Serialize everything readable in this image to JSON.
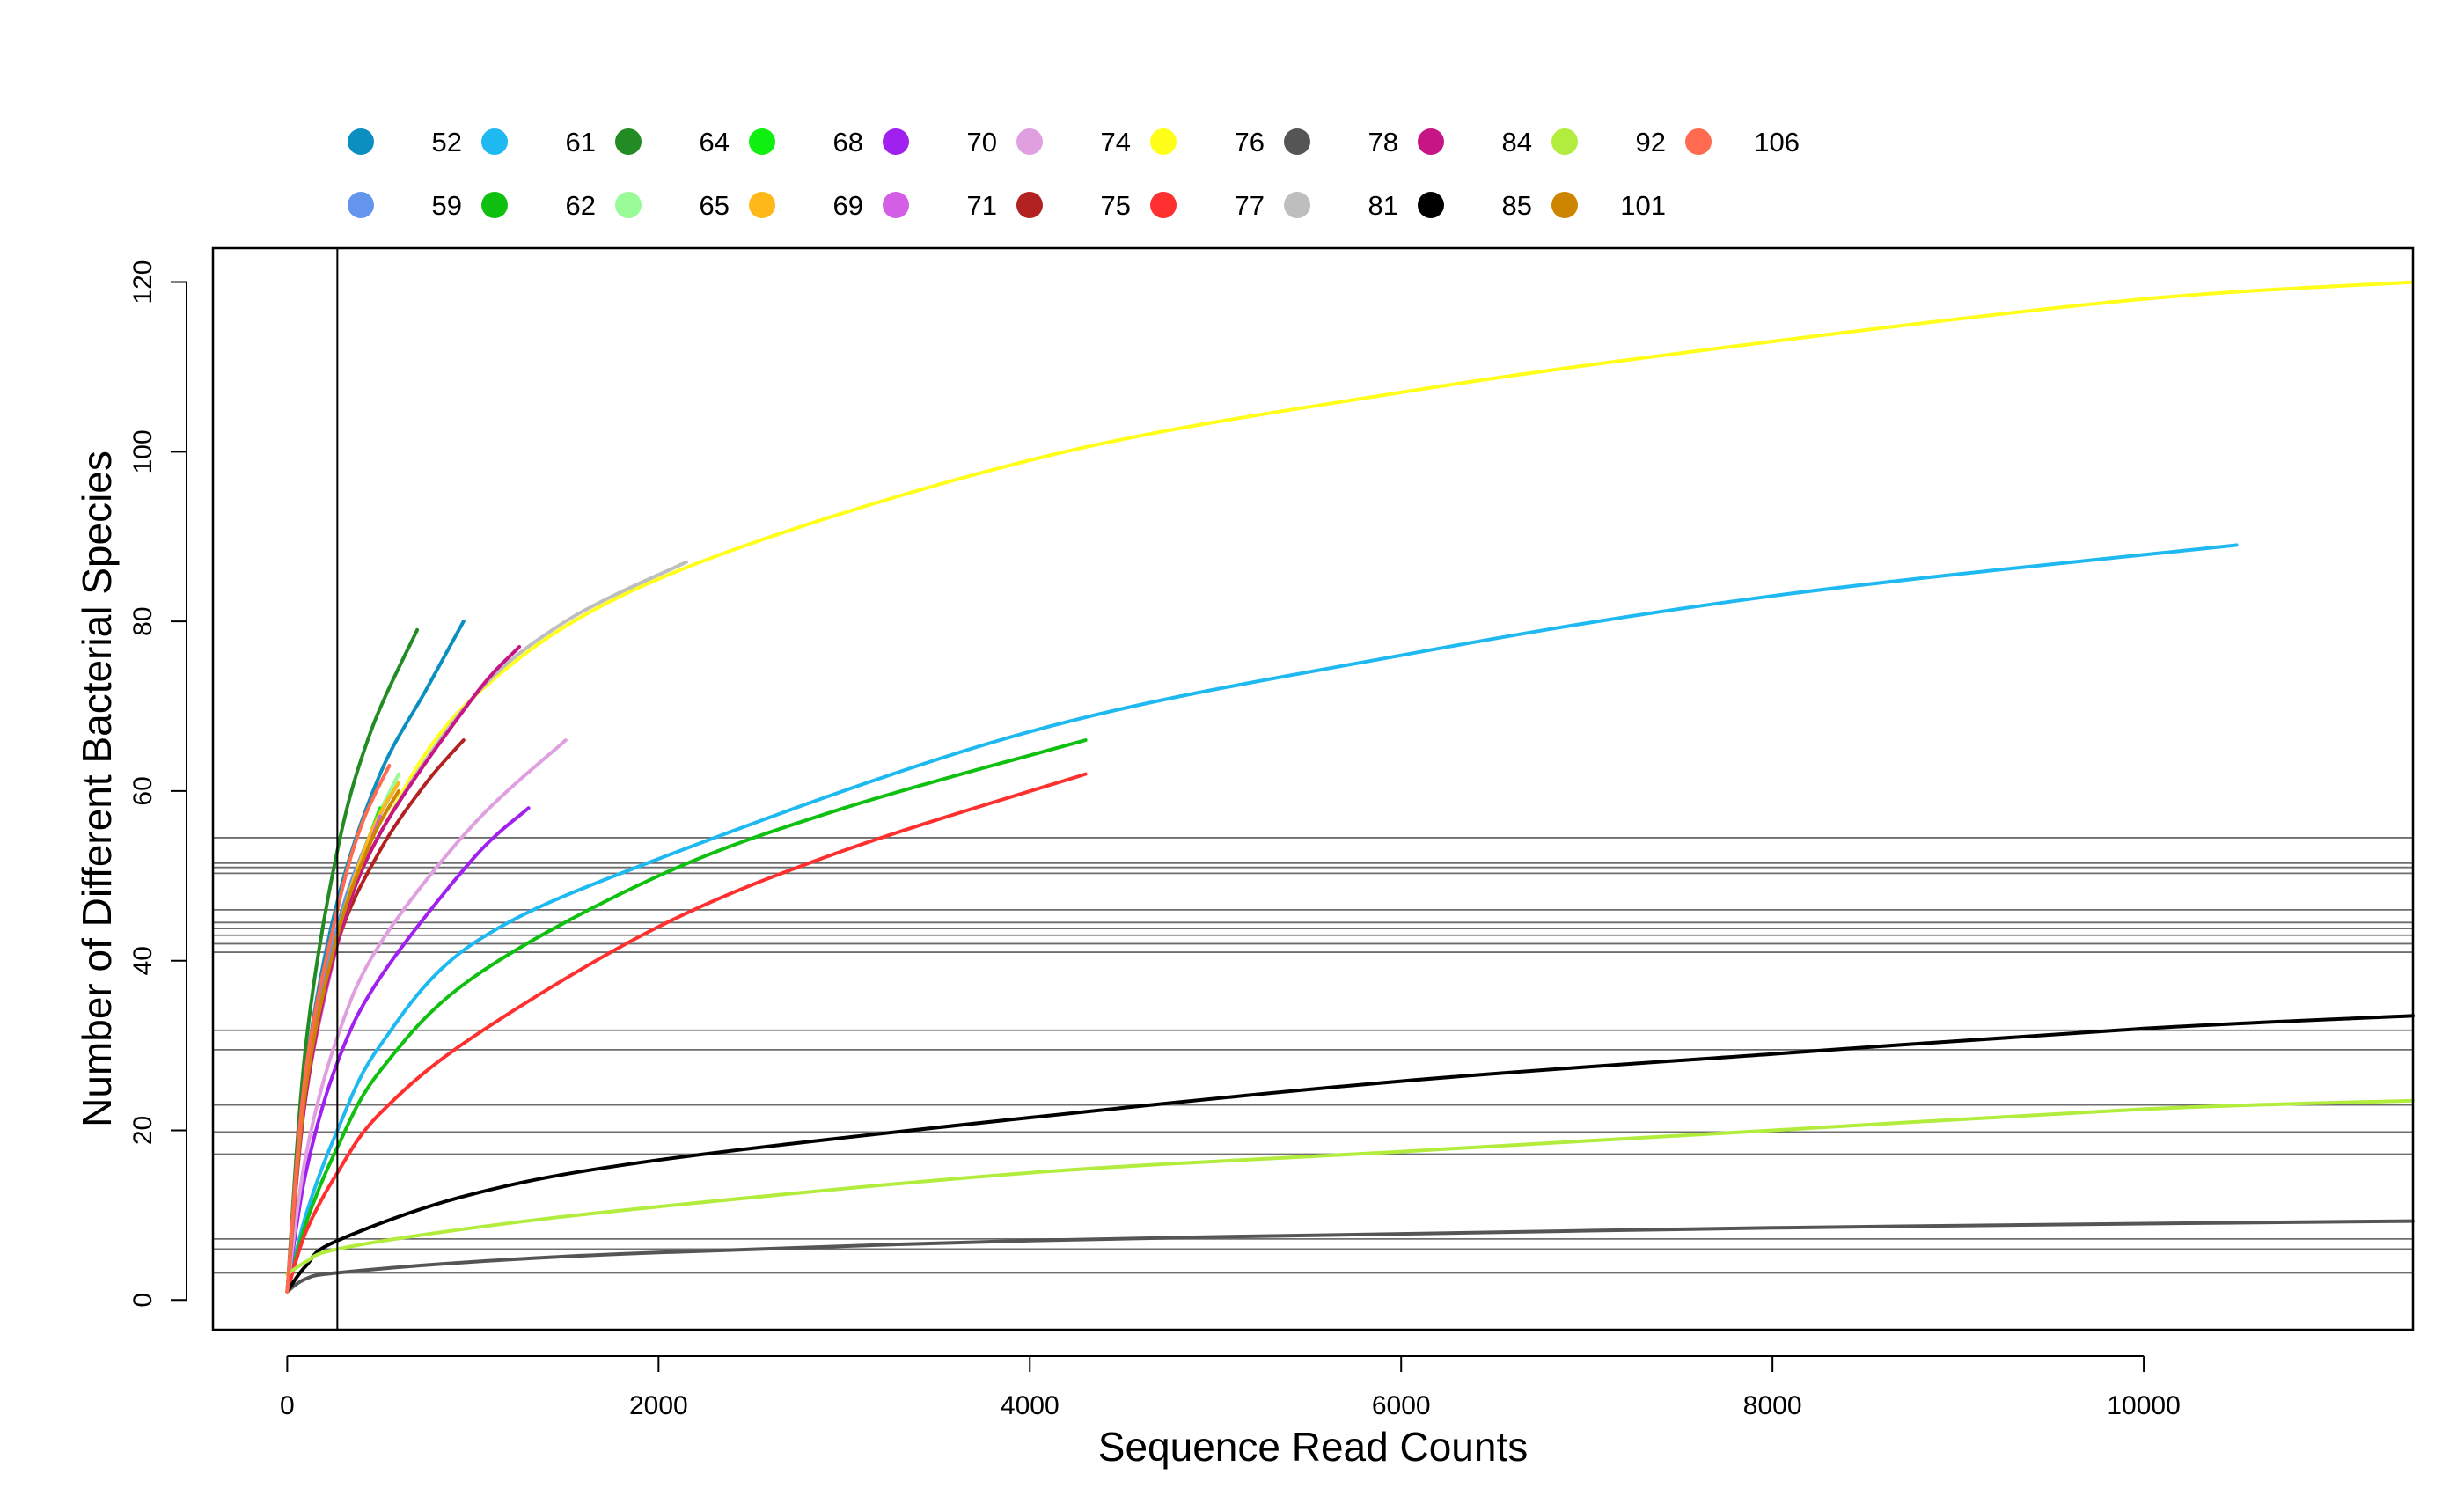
{
  "chart_data": {
    "type": "line",
    "title": "",
    "xlabel": "Sequence Read Counts",
    "ylabel": "Number of Different Bacterial Species",
    "xlim": [
      -400,
      11450
    ],
    "ylim": [
      -3.5,
      124
    ],
    "xticks": [
      0,
      2000,
      4000,
      6000,
      8000,
      10000
    ],
    "xtick_labels": [
      "0",
      "2000",
      "4000",
      "6000",
      "8000",
      "10000"
    ],
    "yticks": [
      0,
      20,
      40,
      60,
      80,
      100,
      120
    ],
    "ytick_labels": [
      "0",
      "20",
      "40",
      "60",
      "80",
      "100",
      "120"
    ],
    "grid": false,
    "legend_position": "top",
    "vertical_reference_line": {
      "x": 270
    },
    "horizontal_reference_lines": [
      54.5,
      51.5,
      51.0,
      50.3,
      46.0,
      44.5,
      43.8,
      43.0,
      42.0,
      41.0,
      31.8,
      29.5,
      23.0,
      19.8,
      17.2,
      7.2,
      6.0,
      3.2
    ],
    "series": [
      {
        "name": "52",
        "color": "#0A8FC0",
        "max_x": 950,
        "max_y": 80,
        "points": [
          [
            0,
            1
          ],
          [
            100,
            27
          ],
          [
            270,
            47
          ],
          [
            500,
            62
          ],
          [
            750,
            72
          ],
          [
            950,
            80
          ]
        ]
      },
      {
        "name": "59",
        "color": "#6495ED",
        "max_x": 600,
        "max_y": 61,
        "points": [
          [
            0,
            1
          ],
          [
            100,
            25
          ],
          [
            270,
            44
          ],
          [
            450,
            55
          ],
          [
            600,
            61
          ]
        ]
      },
      {
        "name": "61",
        "color": "#1EB9F0",
        "max_x": 10500,
        "max_y": 89,
        "points": [
          [
            0,
            1
          ],
          [
            100,
            10
          ],
          [
            270,
            20
          ],
          [
            500,
            30
          ],
          [
            1000,
            42
          ],
          [
            2000,
            52
          ],
          [
            4000,
            67
          ],
          [
            6000,
            76
          ],
          [
            8000,
            83
          ],
          [
            10500,
            89
          ]
        ]
      },
      {
        "name": "62",
        "color": "#10C010",
        "max_x": 4300,
        "max_y": 66,
        "points": [
          [
            0,
            1
          ],
          [
            100,
            9
          ],
          [
            270,
            18
          ],
          [
            500,
            27
          ],
          [
            1000,
            38
          ],
          [
            2000,
            50
          ],
          [
            3000,
            58
          ],
          [
            4300,
            66
          ]
        ]
      },
      {
        "name": "64",
        "color": "#238B23",
        "max_x": 700,
        "max_y": 79,
        "points": [
          [
            0,
            1
          ],
          [
            100,
            30
          ],
          [
            270,
            53
          ],
          [
            450,
            67
          ],
          [
            700,
            79
          ]
        ]
      },
      {
        "name": "65",
        "color": "#98FB98",
        "max_x": 600,
        "max_y": 62,
        "points": [
          [
            0,
            1
          ],
          [
            100,
            25
          ],
          [
            270,
            43
          ],
          [
            450,
            55
          ],
          [
            600,
            62
          ]
        ]
      },
      {
        "name": "68",
        "color": "#10F010",
        "max_x": 500,
        "max_y": 58,
        "points": [
          [
            0,
            1
          ],
          [
            100,
            25
          ],
          [
            270,
            43
          ],
          [
            400,
            52
          ],
          [
            500,
            58
          ]
        ]
      },
      {
        "name": "69",
        "color": "#FFB81A",
        "max_x": 600,
        "max_y": 61,
        "points": [
          [
            0,
            1
          ],
          [
            100,
            25
          ],
          [
            270,
            43
          ],
          [
            450,
            55
          ],
          [
            600,
            61
          ]
        ]
      },
      {
        "name": "70",
        "color": "#A020F0",
        "max_x": 1300,
        "max_y": 58,
        "points": [
          [
            0,
            1
          ],
          [
            100,
            15
          ],
          [
            270,
            28
          ],
          [
            500,
            38
          ],
          [
            1000,
            52
          ],
          [
            1300,
            58
          ]
        ]
      },
      {
        "name": "71",
        "color": "#D25FE6",
        "max_x": 500,
        "max_y": 57,
        "points": [
          [
            0,
            1
          ],
          [
            100,
            24
          ],
          [
            270,
            42
          ],
          [
            400,
            51
          ],
          [
            500,
            57
          ]
        ]
      },
      {
        "name": "74",
        "color": "#E0A0E0",
        "max_x": 1500,
        "max_y": 66,
        "points": [
          [
            0,
            1
          ],
          [
            100,
            17
          ],
          [
            270,
            31
          ],
          [
            500,
            42
          ],
          [
            1000,
            56
          ],
          [
            1500,
            66
          ]
        ]
      },
      {
        "name": "75",
        "color": "#B22222",
        "max_x": 950,
        "max_y": 66,
        "points": [
          [
            0,
            1
          ],
          [
            100,
            24
          ],
          [
            270,
            42
          ],
          [
            500,
            53
          ],
          [
            750,
            61
          ],
          [
            950,
            66
          ]
        ]
      },
      {
        "name": "76",
        "color": "#FFFF1A",
        "max_x": 11450,
        "max_y": 120,
        "points": [
          [
            0,
            1
          ],
          [
            100,
            24
          ],
          [
            270,
            42
          ],
          [
            500,
            55
          ],
          [
            1000,
            71
          ],
          [
            2000,
            85
          ],
          [
            4000,
            99
          ],
          [
            6000,
            107
          ],
          [
            8000,
            113
          ],
          [
            10000,
            118
          ],
          [
            11450,
            120
          ]
        ]
      },
      {
        "name": "77",
        "color": "#FF3030",
        "max_x": 4300,
        "max_y": 62,
        "points": [
          [
            0,
            1
          ],
          [
            100,
            8
          ],
          [
            270,
            15
          ],
          [
            500,
            22
          ],
          [
            1000,
            31
          ],
          [
            2000,
            44
          ],
          [
            3000,
            53
          ],
          [
            4300,
            62
          ]
        ]
      },
      {
        "name": "78",
        "color": "#555555",
        "max_x": 11450,
        "max_y": 9.3,
        "points": [
          [
            0,
            1
          ],
          [
            100,
            2.5
          ],
          [
            270,
            3.2
          ],
          [
            1000,
            4.5
          ],
          [
            2000,
            5.6
          ],
          [
            4000,
            7
          ],
          [
            6000,
            7.8
          ],
          [
            8000,
            8.5
          ],
          [
            10000,
            9
          ],
          [
            11450,
            9.3
          ]
        ]
      },
      {
        "name": "81",
        "color": "#BEBEBE",
        "max_x": 2150,
        "max_y": 87,
        "points": [
          [
            0,
            1
          ],
          [
            100,
            24
          ],
          [
            270,
            42
          ],
          [
            500,
            55
          ],
          [
            1000,
            71
          ],
          [
            1500,
            80
          ],
          [
            2150,
            87
          ]
        ]
      },
      {
        "name": "84",
        "color": "#C71585",
        "max_x": 1250,
        "max_y": 77,
        "points": [
          [
            0,
            1
          ],
          [
            100,
            24
          ],
          [
            270,
            42
          ],
          [
            500,
            55
          ],
          [
            1000,
            71
          ],
          [
            1250,
            77
          ]
        ]
      },
      {
        "name": "85",
        "color": "#000000",
        "max_x": 11450,
        "max_y": 33.5,
        "points": [
          [
            0,
            1
          ],
          [
            100,
            4
          ],
          [
            270,
            7
          ],
          [
            1000,
            12.5
          ],
          [
            2000,
            16.5
          ],
          [
            4000,
            21.5
          ],
          [
            6000,
            25.8
          ],
          [
            8000,
            29
          ],
          [
            10000,
            32
          ],
          [
            11450,
            33.5
          ]
        ]
      },
      {
        "name": "92",
        "color": "#B2EC3C",
        "max_x": 11450,
        "max_y": 23.5,
        "points": [
          [
            0,
            3
          ],
          [
            100,
            4.5
          ],
          [
            270,
            6
          ],
          [
            1000,
            8.5
          ],
          [
            2000,
            11
          ],
          [
            4000,
            15
          ],
          [
            6000,
            17.5
          ],
          [
            8000,
            20
          ],
          [
            10000,
            22.5
          ],
          [
            11450,
            23.5
          ]
        ]
      },
      {
        "name": "101",
        "color": "#CD8500",
        "max_x": 600,
        "max_y": 60,
        "points": [
          [
            0,
            1
          ],
          [
            100,
            25
          ],
          [
            270,
            43
          ],
          [
            450,
            54
          ],
          [
            600,
            60
          ]
        ]
      },
      {
        "name": "106",
        "color": "#FF6A50",
        "max_x": 550,
        "max_y": 63,
        "points": [
          [
            0,
            1
          ],
          [
            100,
            27
          ],
          [
            270,
            46
          ],
          [
            400,
            56
          ],
          [
            550,
            63
          ]
        ]
      }
    ]
  }
}
